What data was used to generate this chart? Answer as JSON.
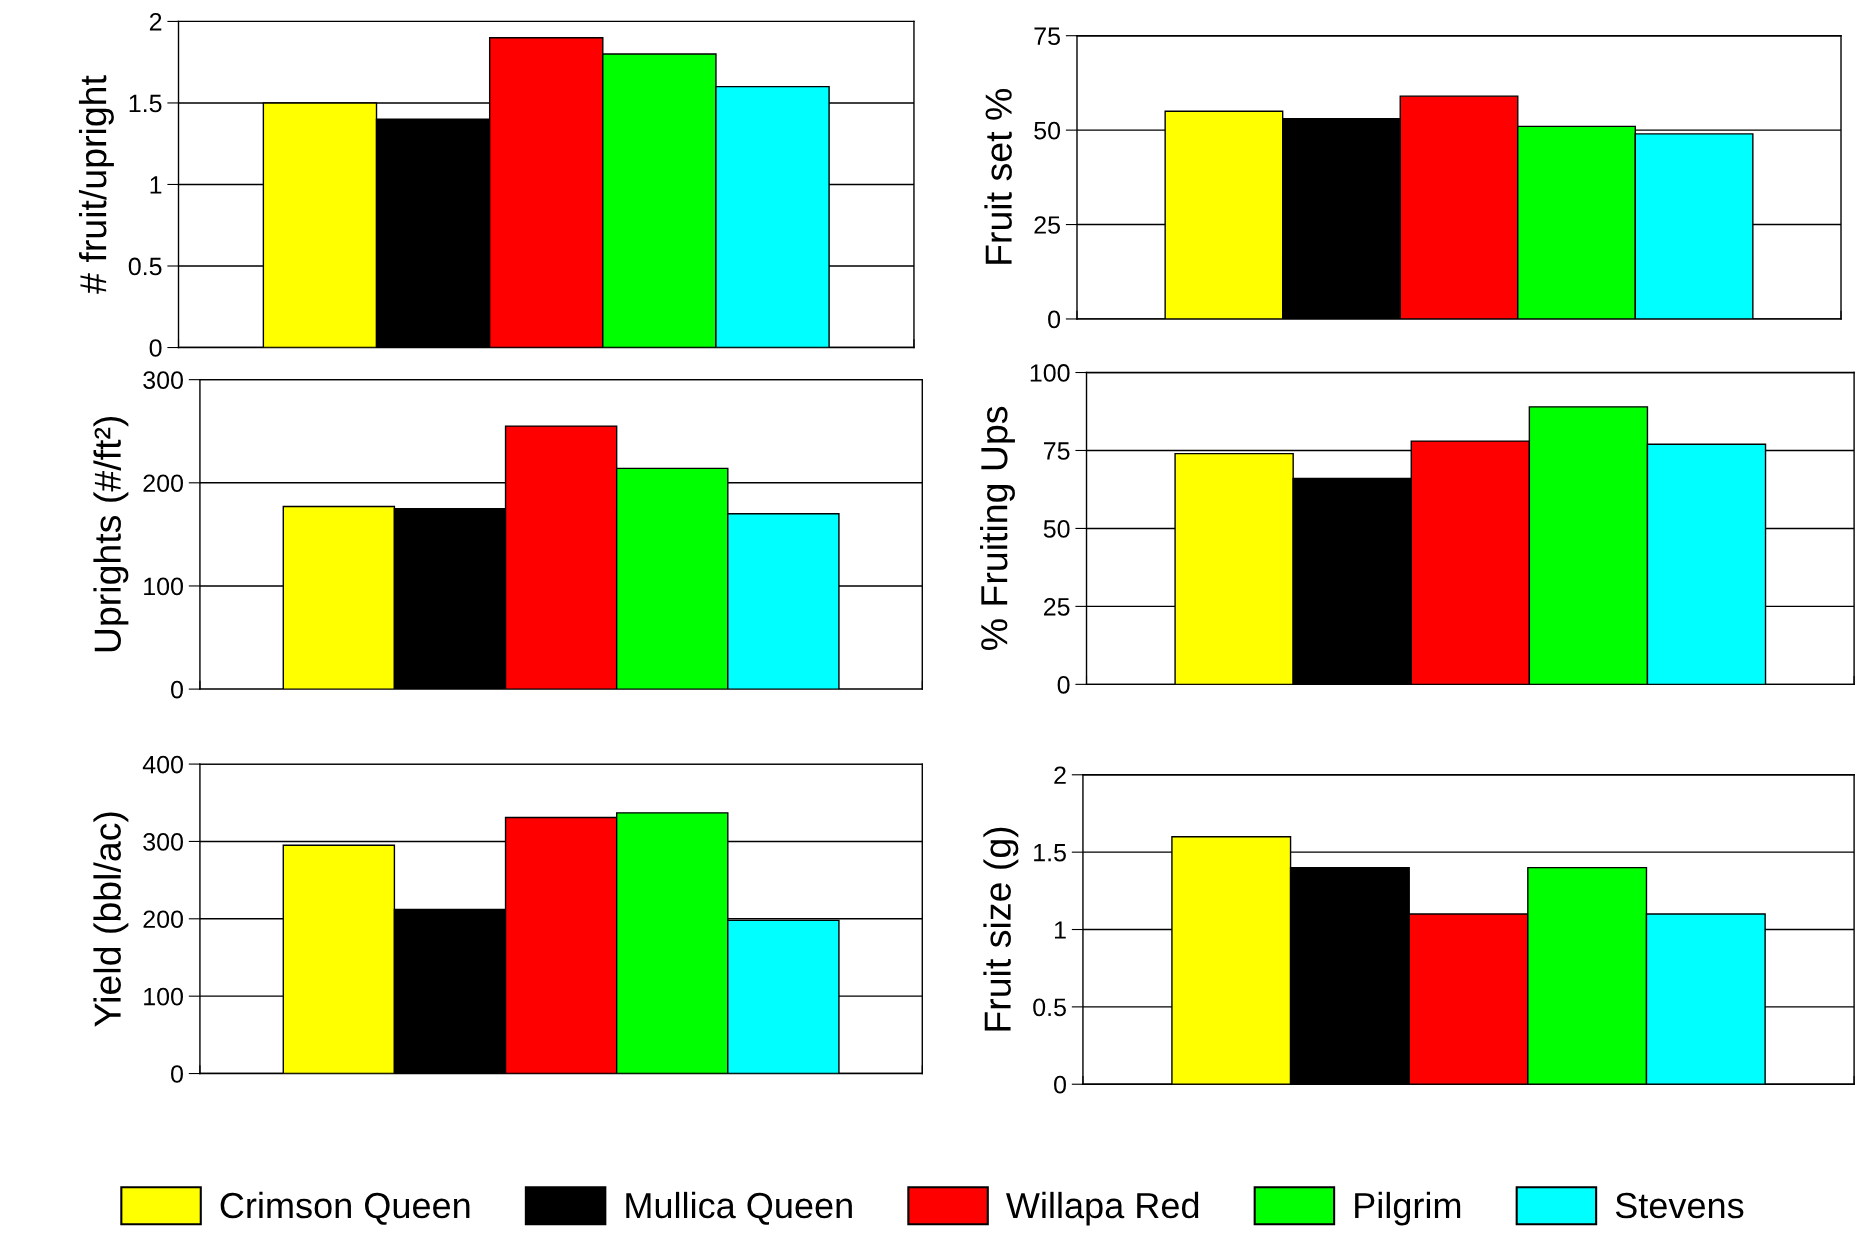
{
  "chart_data": [
    {
      "type": "bar",
      "ylabel": "# fruit/upright",
      "categories": [
        null
      ],
      "ylim": [
        0,
        2
      ],
      "yticks": [
        0,
        0.5,
        1,
        1.5,
        2
      ],
      "grid": "y",
      "legend": "bottom",
      "series": [
        {
          "name": "Crimson Queen",
          "color": "#ffff00",
          "values": [
            1.5
          ]
        },
        {
          "name": "Mullica Queen",
          "color": "#000000",
          "values": [
            1.4
          ]
        },
        {
          "name": "Willapa Red",
          "color": "#ff0000",
          "values": [
            1.9
          ]
        },
        {
          "name": "Pilgrim",
          "color": "#00ff00",
          "values": [
            1.8
          ]
        },
        {
          "name": "Stevens",
          "color": "#00ffff",
          "values": [
            1.6
          ]
        }
      ]
    },
    {
      "type": "bar",
      "ylabel": "Fruit set %",
      "categories": [
        null
      ],
      "ylim": [
        0,
        75
      ],
      "yticks": [
        0,
        25,
        50,
        75
      ],
      "grid": "y",
      "series": [
        {
          "color": "#ffff00",
          "values": [
            55
          ]
        },
        {
          "color": "#000000",
          "values": [
            53
          ]
        },
        {
          "color": "#ff0000",
          "values": [
            59
          ]
        },
        {
          "color": "#00ff00",
          "values": [
            51
          ]
        },
        {
          "color": "#00ffff",
          "values": [
            49
          ]
        }
      ]
    },
    {
      "type": "bar",
      "ylabel": "Uprights (#/ft²)",
      "categories": [
        null
      ],
      "ylim": [
        0,
        300
      ],
      "yticks": [
        0,
        100,
        200,
        300
      ],
      "grid": "y",
      "series": [
        {
          "color": "#ffff00",
          "values": [
            177
          ]
        },
        {
          "color": "#000000",
          "values": [
            175
          ]
        },
        {
          "color": "#ff0000",
          "values": [
            255
          ]
        },
        {
          "color": "#00ff00",
          "values": [
            214
          ]
        },
        {
          "color": "#00ffff",
          "values": [
            170
          ]
        }
      ]
    },
    {
      "type": "bar",
      "ylabel": "% Fruiting Ups",
      "categories": [
        null
      ],
      "ylim": [
        0,
        100
      ],
      "yticks": [
        0,
        25,
        50,
        75,
        100
      ],
      "grid": "y",
      "series": [
        {
          "color": "#ffff00",
          "values": [
            74
          ]
        },
        {
          "color": "#000000",
          "values": [
            66
          ]
        },
        {
          "color": "#ff0000",
          "values": [
            78
          ]
        },
        {
          "color": "#00ff00",
          "values": [
            89
          ]
        },
        {
          "color": "#00ffff",
          "values": [
            77
          ]
        }
      ]
    },
    {
      "type": "bar",
      "ylabel": "Yield (bbl/ac)",
      "categories": [
        null
      ],
      "ylim": [
        0,
        400
      ],
      "yticks": [
        0,
        100,
        200,
        300,
        400
      ],
      "grid": "y",
      "series": [
        {
          "color": "#ffff00",
          "values": [
            295
          ]
        },
        {
          "color": "#000000",
          "values": [
            212
          ]
        },
        {
          "color": "#ff0000",
          "values": [
            331
          ]
        },
        {
          "color": "#00ff00",
          "values": [
            337
          ]
        },
        {
          "color": "#00ffff",
          "values": [
            198
          ]
        }
      ]
    },
    {
      "type": "bar",
      "ylabel": "Fruit size (g)",
      "categories": [
        null
      ],
      "ylim": [
        0,
        2
      ],
      "yticks": [
        0,
        0.5,
        1,
        1.5,
        2
      ],
      "grid": "y",
      "series": [
        {
          "color": "#ffff00",
          "values": [
            1.6
          ]
        },
        {
          "color": "#000000",
          "values": [
            1.4
          ]
        },
        {
          "color": "#ff0000",
          "values": [
            1.1
          ]
        },
        {
          "color": "#00ff00",
          "values": [
            1.4
          ]
        },
        {
          "color": "#00ffff",
          "values": [
            1.1
          ]
        }
      ]
    }
  ]
}
